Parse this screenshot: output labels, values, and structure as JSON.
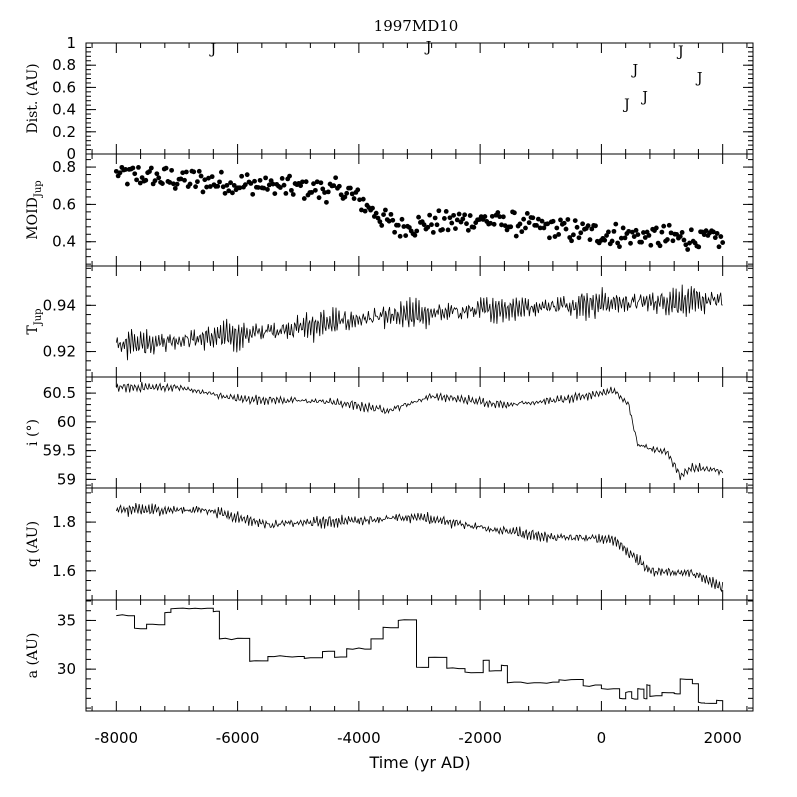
{
  "chart_data": {
    "type": "multi-panel",
    "title": "1997MD10",
    "xlabel": "Time (yr AD)",
    "xlim": [
      -8500,
      2500
    ],
    "xticks": [
      -8000,
      -6000,
      -4000,
      -2000,
      0,
      2000
    ],
    "xtick_labels": [
      "-8000",
      "-6000",
      "-4000",
      "-2000",
      "0",
      "2000"
    ],
    "panels": [
      {
        "id": "dist",
        "type": "scatter-text",
        "ylabel": "Dist. (AU)",
        "ylim": [
          0,
          1
        ],
        "yticks": [
          0,
          0.2,
          0.4,
          0.6,
          0.8,
          1
        ],
        "ytick_labels": [
          "0",
          "0.2",
          "0.4",
          "0.6",
          "0.8",
          "1"
        ],
        "marker_text": "J",
        "points": [
          {
            "x": -6400,
            "y": 0.95
          },
          {
            "x": -2850,
            "y": 0.97
          },
          {
            "x": 420,
            "y": 0.45
          },
          {
            "x": 560,
            "y": 0.76
          },
          {
            "x": 720,
            "y": 0.52
          },
          {
            "x": 1310,
            "y": 0.93
          },
          {
            "x": 1620,
            "y": 0.69
          }
        ]
      },
      {
        "id": "moid",
        "type": "scatter",
        "ylabel": "MOID",
        "ylabel_sub": "Jup",
        "ylim": [
          0.27,
          0.87
        ],
        "yticks": [
          0.4,
          0.6,
          0.8
        ],
        "ytick_labels": [
          "0.4",
          "0.6",
          "0.8"
        ],
        "trend": [
          [
            -8000,
            0.76
          ],
          [
            -6000,
            0.71
          ],
          [
            -4200,
            0.67
          ],
          [
            -3400,
            0.48
          ],
          [
            -2000,
            0.52
          ],
          [
            0,
            0.44
          ],
          [
            2000,
            0.41
          ]
        ],
        "n_points": 330
      },
      {
        "id": "tjup",
        "type": "line",
        "ylabel": "T",
        "ylabel_sub": "Jup",
        "ylim": [
          0.909,
          0.957
        ],
        "yticks": [
          0.92,
          0.94
        ],
        "ytick_labels": [
          "0.92",
          "0.94"
        ],
        "trend": [
          [
            -8000,
            0.923
          ],
          [
            -6000,
            0.927
          ],
          [
            -4000,
            0.934
          ],
          [
            -2000,
            0.938
          ],
          [
            0,
            0.941
          ],
          [
            2000,
            0.942
          ]
        ],
        "amplitude": 0.0055,
        "n_points": 600
      },
      {
        "id": "incl",
        "type": "line",
        "ylabel": "i (°)",
        "ylim": [
          58.85,
          60.78
        ],
        "yticks": [
          59,
          59.5,
          60,
          60.5
        ],
        "ytick_labels": [
          "59",
          "59.5",
          "60",
          "60.5"
        ],
        "trend": [
          [
            -8000,
            60.6
          ],
          [
            -7000,
            60.6
          ],
          [
            -6000,
            60.4
          ],
          [
            -4500,
            60.35
          ],
          [
            -3500,
            60.2
          ],
          [
            -2800,
            60.45
          ],
          [
            -1600,
            60.3
          ],
          [
            -500,
            60.4
          ],
          [
            200,
            60.55
          ],
          [
            450,
            60.3
          ],
          [
            600,
            59.6
          ],
          [
            1100,
            59.45
          ],
          [
            1300,
            59.05
          ],
          [
            1500,
            59.2
          ],
          [
            2000,
            59.15
          ]
        ],
        "amplitude": 0.07,
        "n_points": 500
      },
      {
        "id": "q",
        "type": "line",
        "ylabel": "q (AU)",
        "ylim": [
          1.48,
          1.94
        ],
        "yticks": [
          1.6,
          1.8
        ],
        "ytick_labels": [
          "1.6",
          "1.8"
        ],
        "trend": [
          [
            -8000,
            1.85
          ],
          [
            -6500,
            1.85
          ],
          [
            -5500,
            1.79
          ],
          [
            -3000,
            1.82
          ],
          [
            -2500,
            1.8
          ],
          [
            -1000,
            1.74
          ],
          [
            200,
            1.73
          ],
          [
            800,
            1.6
          ],
          [
            1500,
            1.59
          ],
          [
            2000,
            1.53
          ]
        ],
        "amplitude": 0.022,
        "n_points": 560
      },
      {
        "id": "a",
        "type": "step",
        "ylabel": "a (AU)",
        "ylim": [
          25.7,
          37.1
        ],
        "yticks": [
          30,
          35
        ],
        "ytick_labels": [
          "30",
          "35"
        ],
        "x": [
          -8000,
          -7700,
          -7500,
          -7200,
          -7100,
          -6400,
          -6300,
          -5800,
          -5500,
          -4900,
          -4600,
          -4400,
          -4200,
          -3800,
          -3600,
          -3350,
          -3050,
          -2850,
          -2550,
          -2250,
          -1950,
          -1850,
          -1650,
          -1550,
          -1000,
          -700,
          -300,
          0,
          300,
          400,
          500,
          600,
          700,
          750,
          800,
          1000,
          1200,
          1300,
          1500,
          1600,
          1700,
          1900,
          2000
        ],
        "values": [
          35.5,
          34.2,
          34.6,
          35.8,
          36.2,
          35.9,
          33.1,
          30.8,
          31.3,
          31.1,
          31.8,
          31.2,
          32.1,
          33.1,
          34.3,
          35.0,
          30.2,
          31.2,
          30.1,
          29.7,
          30.9,
          29.8,
          30.4,
          28.6,
          28.6,
          28.9,
          28.3,
          28.0,
          27.0,
          27.6,
          27.0,
          28.0,
          27.0,
          28.4,
          27.2,
          27.6,
          27.5,
          29.0,
          28.5,
          26.6,
          26.5,
          26.8,
          26.8
        ]
      }
    ]
  }
}
